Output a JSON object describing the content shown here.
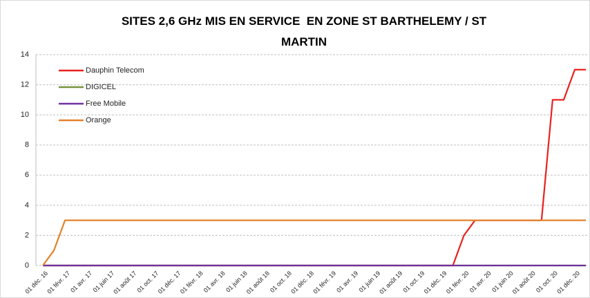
{
  "chart_data": {
    "type": "line",
    "title": "SITES 2,6 GHz MIS EN SERVICE  EN ZONE ST BARTHELEMY / ST MARTIN",
    "categories": [
      "01 déc. 16",
      null,
      "01 févr. 17",
      null,
      "01 avr. 17",
      null,
      "01 juin 17",
      null,
      "01 août 17",
      null,
      "01 oct. 17",
      null,
      "01 déc. 17",
      null,
      "01 févr. 18",
      null,
      "01 avr. 18",
      null,
      "01 juin 18",
      null,
      "01 août 18",
      null,
      "01 oct. 18",
      null,
      "01 déc. 18",
      null,
      "01 févr. 19",
      null,
      "01 avr. 19",
      null,
      "01 juin 19",
      null,
      "01 août 19",
      null,
      "01 oct. 19",
      null,
      "01 déc. 19",
      null,
      "01 févr. 20",
      null,
      "01 avr. 20",
      null,
      "01 juin 20",
      null,
      "01 août 20",
      null,
      "01 oct. 20",
      null,
      "01 déc. 20",
      null
    ],
    "series": [
      {
        "name": "Dauphin Telecom",
        "color": "#e8211d",
        "values": [
          0,
          0,
          0,
          0,
          0,
          0,
          0,
          0,
          0,
          0,
          0,
          0,
          0,
          0,
          0,
          0,
          0,
          0,
          0,
          0,
          0,
          0,
          0,
          0,
          0,
          0,
          0,
          0,
          0,
          0,
          0,
          0,
          0,
          0,
          0,
          0,
          0,
          0,
          2,
          3,
          3,
          3,
          3,
          3,
          3,
          3,
          11,
          11,
          13,
          13
        ]
      },
      {
        "name": "DIGICEL",
        "color": "#77933c",
        "values": [
          0,
          0,
          0,
          0,
          0,
          0,
          0,
          0,
          0,
          0,
          0,
          0,
          0,
          0,
          0,
          0,
          0,
          0,
          0,
          0,
          0,
          0,
          0,
          0,
          0,
          0,
          0,
          0,
          0,
          0,
          0,
          0,
          0,
          0,
          0,
          0,
          0,
          0,
          0,
          0,
          0,
          0,
          0,
          0,
          0,
          0,
          0,
          0,
          0,
          0
        ]
      },
      {
        "name": "Free Mobile",
        "color": "#7030a0",
        "values": [
          0,
          0,
          0,
          0,
          0,
          0,
          0,
          0,
          0,
          0,
          0,
          0,
          0,
          0,
          0,
          0,
          0,
          0,
          0,
          0,
          0,
          0,
          0,
          0,
          0,
          0,
          0,
          0,
          0,
          0,
          0,
          0,
          0,
          0,
          0,
          0,
          0,
          0,
          0,
          0,
          0,
          0,
          0,
          0,
          0,
          0,
          0,
          0,
          0,
          0
        ]
      },
      {
        "name": "Orange",
        "color": "#e3812b",
        "values": [
          0,
          1,
          3,
          3,
          3,
          3,
          3,
          3,
          3,
          3,
          3,
          3,
          3,
          3,
          3,
          3,
          3,
          3,
          3,
          3,
          3,
          3,
          3,
          3,
          3,
          3,
          3,
          3,
          3,
          3,
          3,
          3,
          3,
          3,
          3,
          3,
          3,
          3,
          3,
          3,
          3,
          3,
          3,
          3,
          3,
          3,
          3,
          3,
          3,
          3
        ]
      }
    ],
    "ylim": [
      0,
      14
    ],
    "yticks": [
      0,
      2,
      4,
      6,
      8,
      10,
      12,
      14
    ],
    "grid": true,
    "legend": "upper left"
  }
}
